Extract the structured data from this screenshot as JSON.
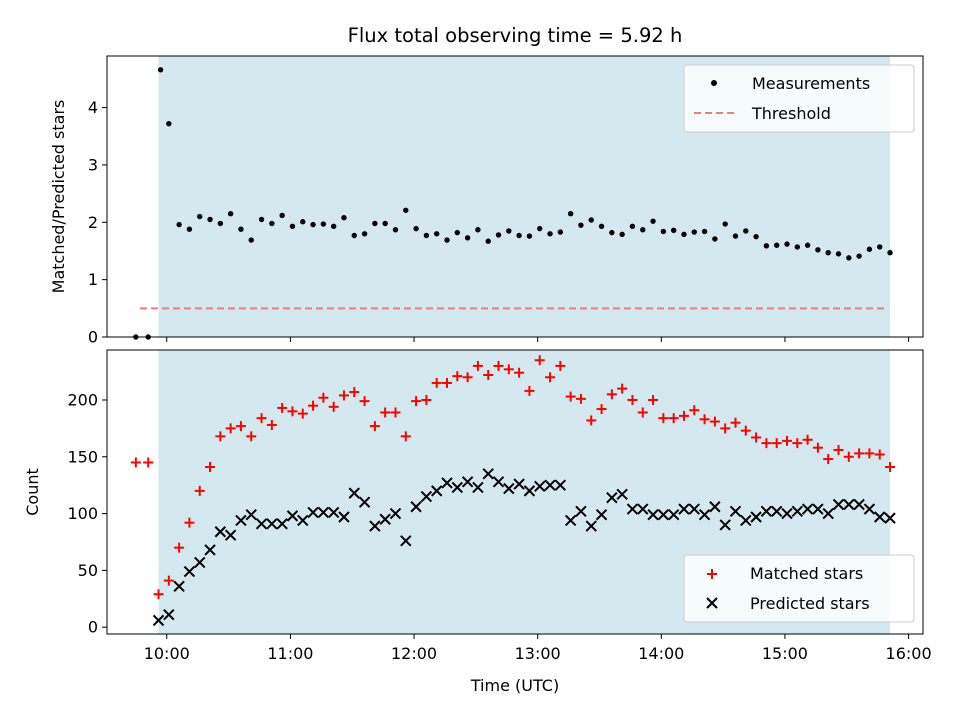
{
  "chart_data": [
    {
      "panel": "top",
      "type": "scatter",
      "title": "Flux total observing time = 5.92 h",
      "xlabel": "",
      "ylabel": "Matched/Predicted stars",
      "xlim": [
        "09:31",
        "16:07"
      ],
      "ylim": [
        0,
        4.9
      ],
      "yticks": [
        0,
        1,
        2,
        3,
        4
      ],
      "xticks": [
        "10:00",
        "11:00",
        "12:00",
        "13:00",
        "14:00",
        "15:00",
        "16:00"
      ],
      "shaded_span": {
        "start": "09:56",
        "end": "15:51",
        "color": "#d3e9ef"
      },
      "legend_position": "upper right",
      "series": [
        {
          "name": "Measurements",
          "kind": "scatter",
          "color": "#000000",
          "marker": "dot",
          "points": [
            [
              "09:45",
              0.0
            ],
            [
              "09:51",
              0.0
            ],
            [
              "09:57",
              4.66
            ],
            [
              "10:01",
              3.72
            ],
            [
              "10:06",
              1.96
            ],
            [
              "10:11",
              1.88
            ],
            [
              "10:16",
              2.1
            ],
            [
              "10:21",
              2.05
            ],
            [
              "10:26",
              1.98
            ],
            [
              "10:31",
              2.15
            ],
            [
              "10:36",
              1.88
            ],
            [
              "10:41",
              1.69
            ],
            [
              "10:46",
              2.05
            ],
            [
              "10:51",
              1.98
            ],
            [
              "10:56",
              2.12
            ],
            [
              "11:01",
              1.93
            ],
            [
              "11:06",
              2.01
            ],
            [
              "11:11",
              1.96
            ],
            [
              "11:16",
              1.97
            ],
            [
              "11:21",
              1.93
            ],
            [
              "11:26",
              2.08
            ],
            [
              "11:31",
              1.77
            ],
            [
              "11:36",
              1.8
            ],
            [
              "11:41",
              1.98
            ],
            [
              "11:46",
              1.98
            ],
            [
              "11:51",
              1.87
            ],
            [
              "11:56",
              2.21
            ],
            [
              "12:01",
              1.89
            ],
            [
              "12:06",
              1.77
            ],
            [
              "12:11",
              1.8
            ],
            [
              "12:16",
              1.69
            ],
            [
              "12:21",
              1.82
            ],
            [
              "12:26",
              1.73
            ],
            [
              "12:31",
              1.87
            ],
            [
              "12:36",
              1.67
            ],
            [
              "12:41",
              1.78
            ],
            [
              "12:46",
              1.85
            ],
            [
              "12:51",
              1.77
            ],
            [
              "12:56",
              1.76
            ],
            [
              "13:01",
              1.89
            ],
            [
              "13:06",
              1.8
            ],
            [
              "13:11",
              1.83
            ],
            [
              "13:16",
              2.15
            ],
            [
              "13:21",
              1.95
            ],
            [
              "13:26",
              2.04
            ],
            [
              "13:31",
              1.93
            ],
            [
              "13:36",
              1.82
            ],
            [
              "13:41",
              1.79
            ],
            [
              "13:46",
              1.93
            ],
            [
              "13:51",
              1.87
            ],
            [
              "13:56",
              2.02
            ],
            [
              "14:01",
              1.84
            ],
            [
              "14:06",
              1.86
            ],
            [
              "14:11",
              1.79
            ],
            [
              "14:16",
              1.83
            ],
            [
              "14:21",
              1.84
            ],
            [
              "14:26",
              1.71
            ],
            [
              "14:31",
              1.97
            ],
            [
              "14:36",
              1.76
            ],
            [
              "14:41",
              1.85
            ],
            [
              "14:46",
              1.75
            ],
            [
              "14:51",
              1.59
            ],
            [
              "14:56",
              1.6
            ],
            [
              "15:01",
              1.62
            ],
            [
              "15:06",
              1.57
            ],
            [
              "15:11",
              1.6
            ],
            [
              "15:16",
              1.52
            ],
            [
              "15:21",
              1.47
            ],
            [
              "15:26",
              1.45
            ],
            [
              "15:31",
              1.38
            ],
            [
              "15:36",
              1.41
            ],
            [
              "15:41",
              1.53
            ],
            [
              "15:46",
              1.57
            ],
            [
              "15:51",
              1.47
            ]
          ]
        },
        {
          "name": "Threshold",
          "kind": "line",
          "color": "#f47a7a",
          "dash": "dashed",
          "points": [
            [
              "09:47",
              0.5
            ],
            [
              "15:50",
              0.5
            ]
          ]
        }
      ]
    },
    {
      "panel": "bottom",
      "type": "scatter",
      "title": "",
      "xlabel": "Time (UTC)",
      "ylabel": "Count",
      "xlim": [
        "09:31",
        "16:07"
      ],
      "ylim": [
        -6,
        244
      ],
      "yticks": [
        0,
        50,
        100,
        150,
        200
      ],
      "xticks": [
        "10:00",
        "11:00",
        "12:00",
        "13:00",
        "14:00",
        "15:00",
        "16:00"
      ],
      "shaded_span": {
        "start": "09:56",
        "end": "15:51",
        "color": "#d3e9ef"
      },
      "legend_position": "lower right",
      "series": [
        {
          "name": "Matched stars",
          "kind": "scatter",
          "color": "#ff0000",
          "marker": "plus",
          "points": [
            [
              "09:45",
              145
            ],
            [
              "09:51",
              145
            ],
            [
              "09:56",
              29
            ],
            [
              "10:01",
              41
            ],
            [
              "10:06",
              70
            ],
            [
              "10:11",
              92
            ],
            [
              "10:16",
              120
            ],
            [
              "10:21",
              141
            ],
            [
              "10:26",
              168
            ],
            [
              "10:31",
              175
            ],
            [
              "10:36",
              177
            ],
            [
              "10:41",
              168
            ],
            [
              "10:46",
              184
            ],
            [
              "10:51",
              178
            ],
            [
              "10:56",
              193
            ],
            [
              "11:01",
              190
            ],
            [
              "11:06",
              188
            ],
            [
              "11:11",
              195
            ],
            [
              "11:16",
              202
            ],
            [
              "11:21",
              194
            ],
            [
              "11:26",
              204
            ],
            [
              "11:31",
              207
            ],
            [
              "11:36",
              199
            ],
            [
              "11:41",
              177
            ],
            [
              "11:46",
              189
            ],
            [
              "11:51",
              189
            ],
            [
              "11:56",
              168
            ],
            [
              "12:01",
              199
            ],
            [
              "12:06",
              200
            ],
            [
              "12:11",
              215
            ],
            [
              "12:16",
              215
            ],
            [
              "12:21",
              221
            ],
            [
              "12:26",
              220
            ],
            [
              "12:31",
              230
            ],
            [
              "12:36",
              222
            ],
            [
              "12:41",
              230
            ],
            [
              "12:46",
              227
            ],
            [
              "12:51",
              224
            ],
            [
              "12:56",
              208
            ],
            [
              "13:01",
              235
            ],
            [
              "13:06",
              220
            ],
            [
              "13:11",
              230
            ],
            [
              "13:16",
              203
            ],
            [
              "13:21",
              201
            ],
            [
              "13:26",
              182
            ],
            [
              "13:31",
              192
            ],
            [
              "13:36",
              205
            ],
            [
              "13:41",
              210
            ],
            [
              "13:46",
              200
            ],
            [
              "13:51",
              189
            ],
            [
              "13:56",
              200
            ],
            [
              "14:01",
              184
            ],
            [
              "14:06",
              184
            ],
            [
              "14:11",
              186
            ],
            [
              "14:16",
              191
            ],
            [
              "14:21",
              183
            ],
            [
              "14:26",
              181
            ],
            [
              "14:31",
              175
            ],
            [
              "14:36",
              180
            ],
            [
              "14:41",
              173
            ],
            [
              "14:46",
              167
            ],
            [
              "14:51",
              162
            ],
            [
              "14:56",
              162
            ],
            [
              "15:01",
              164
            ],
            [
              "15:06",
              162
            ],
            [
              "15:11",
              165
            ],
            [
              "15:16",
              158
            ],
            [
              "15:21",
              148
            ],
            [
              "15:26",
              156
            ],
            [
              "15:31",
              150
            ],
            [
              "15:36",
              153
            ],
            [
              "15:41",
              153
            ],
            [
              "15:46",
              152
            ],
            [
              "15:51",
              141
            ]
          ]
        },
        {
          "name": "Predicted stars",
          "kind": "scatter",
          "color": "#000000",
          "marker": "x",
          "points": [
            [
              "09:56",
              6
            ],
            [
              "10:01",
              11
            ],
            [
              "10:06",
              36
            ],
            [
              "10:11",
              49
            ],
            [
              "10:16",
              57
            ],
            [
              "10:21",
              68
            ],
            [
              "10:26",
              84
            ],
            [
              "10:31",
              81
            ],
            [
              "10:36",
              94
            ],
            [
              "10:41",
              99
            ],
            [
              "10:46",
              91
            ],
            [
              "10:51",
              91
            ],
            [
              "10:56",
              91
            ],
            [
              "11:01",
              98
            ],
            [
              "11:06",
              94
            ],
            [
              "11:11",
              101
            ],
            [
              "11:16",
              101
            ],
            [
              "11:21",
              101
            ],
            [
              "11:26",
              97
            ],
            [
              "11:31",
              118
            ],
            [
              "11:36",
              110
            ],
            [
              "11:41",
              89
            ],
            [
              "11:46",
              95
            ],
            [
              "11:51",
              100
            ],
            [
              "11:56",
              76
            ],
            [
              "12:01",
              106
            ],
            [
              "12:06",
              115
            ],
            [
              "12:11",
              120
            ],
            [
              "12:16",
              127
            ],
            [
              "12:21",
              123
            ],
            [
              "12:26",
              128
            ],
            [
              "12:31",
              123
            ],
            [
              "12:36",
              135
            ],
            [
              "12:41",
              128
            ],
            [
              "12:46",
              122
            ],
            [
              "12:51",
              126
            ],
            [
              "12:56",
              120
            ],
            [
              "13:01",
              124
            ],
            [
              "13:06",
              125
            ],
            [
              "13:11",
              125
            ],
            [
              "13:16",
              94
            ],
            [
              "13:21",
              102
            ],
            [
              "13:26",
              89
            ],
            [
              "13:31",
              99
            ],
            [
              "13:36",
              114
            ],
            [
              "13:41",
              117
            ],
            [
              "13:46",
              104
            ],
            [
              "13:51",
              104
            ],
            [
              "13:56",
              99
            ],
            [
              "14:01",
              99
            ],
            [
              "14:06",
              99
            ],
            [
              "14:11",
              104
            ],
            [
              "14:16",
              104
            ],
            [
              "14:21",
              99
            ],
            [
              "14:26",
              106
            ],
            [
              "14:31",
              90
            ],
            [
              "14:36",
              102
            ],
            [
              "14:41",
              94
            ],
            [
              "14:46",
              97
            ],
            [
              "14:51",
              102
            ],
            [
              "14:56",
              102
            ],
            [
              "15:01",
              100
            ],
            [
              "15:06",
              102
            ],
            [
              "15:11",
              104
            ],
            [
              "15:16",
              104
            ],
            [
              "15:21",
              100
            ],
            [
              "15:26",
              108
            ],
            [
              "15:31",
              108
            ],
            [
              "15:36",
              108
            ],
            [
              "15:41",
              104
            ],
            [
              "15:46",
              97
            ],
            [
              "15:51",
              96
            ]
          ]
        }
      ]
    }
  ]
}
